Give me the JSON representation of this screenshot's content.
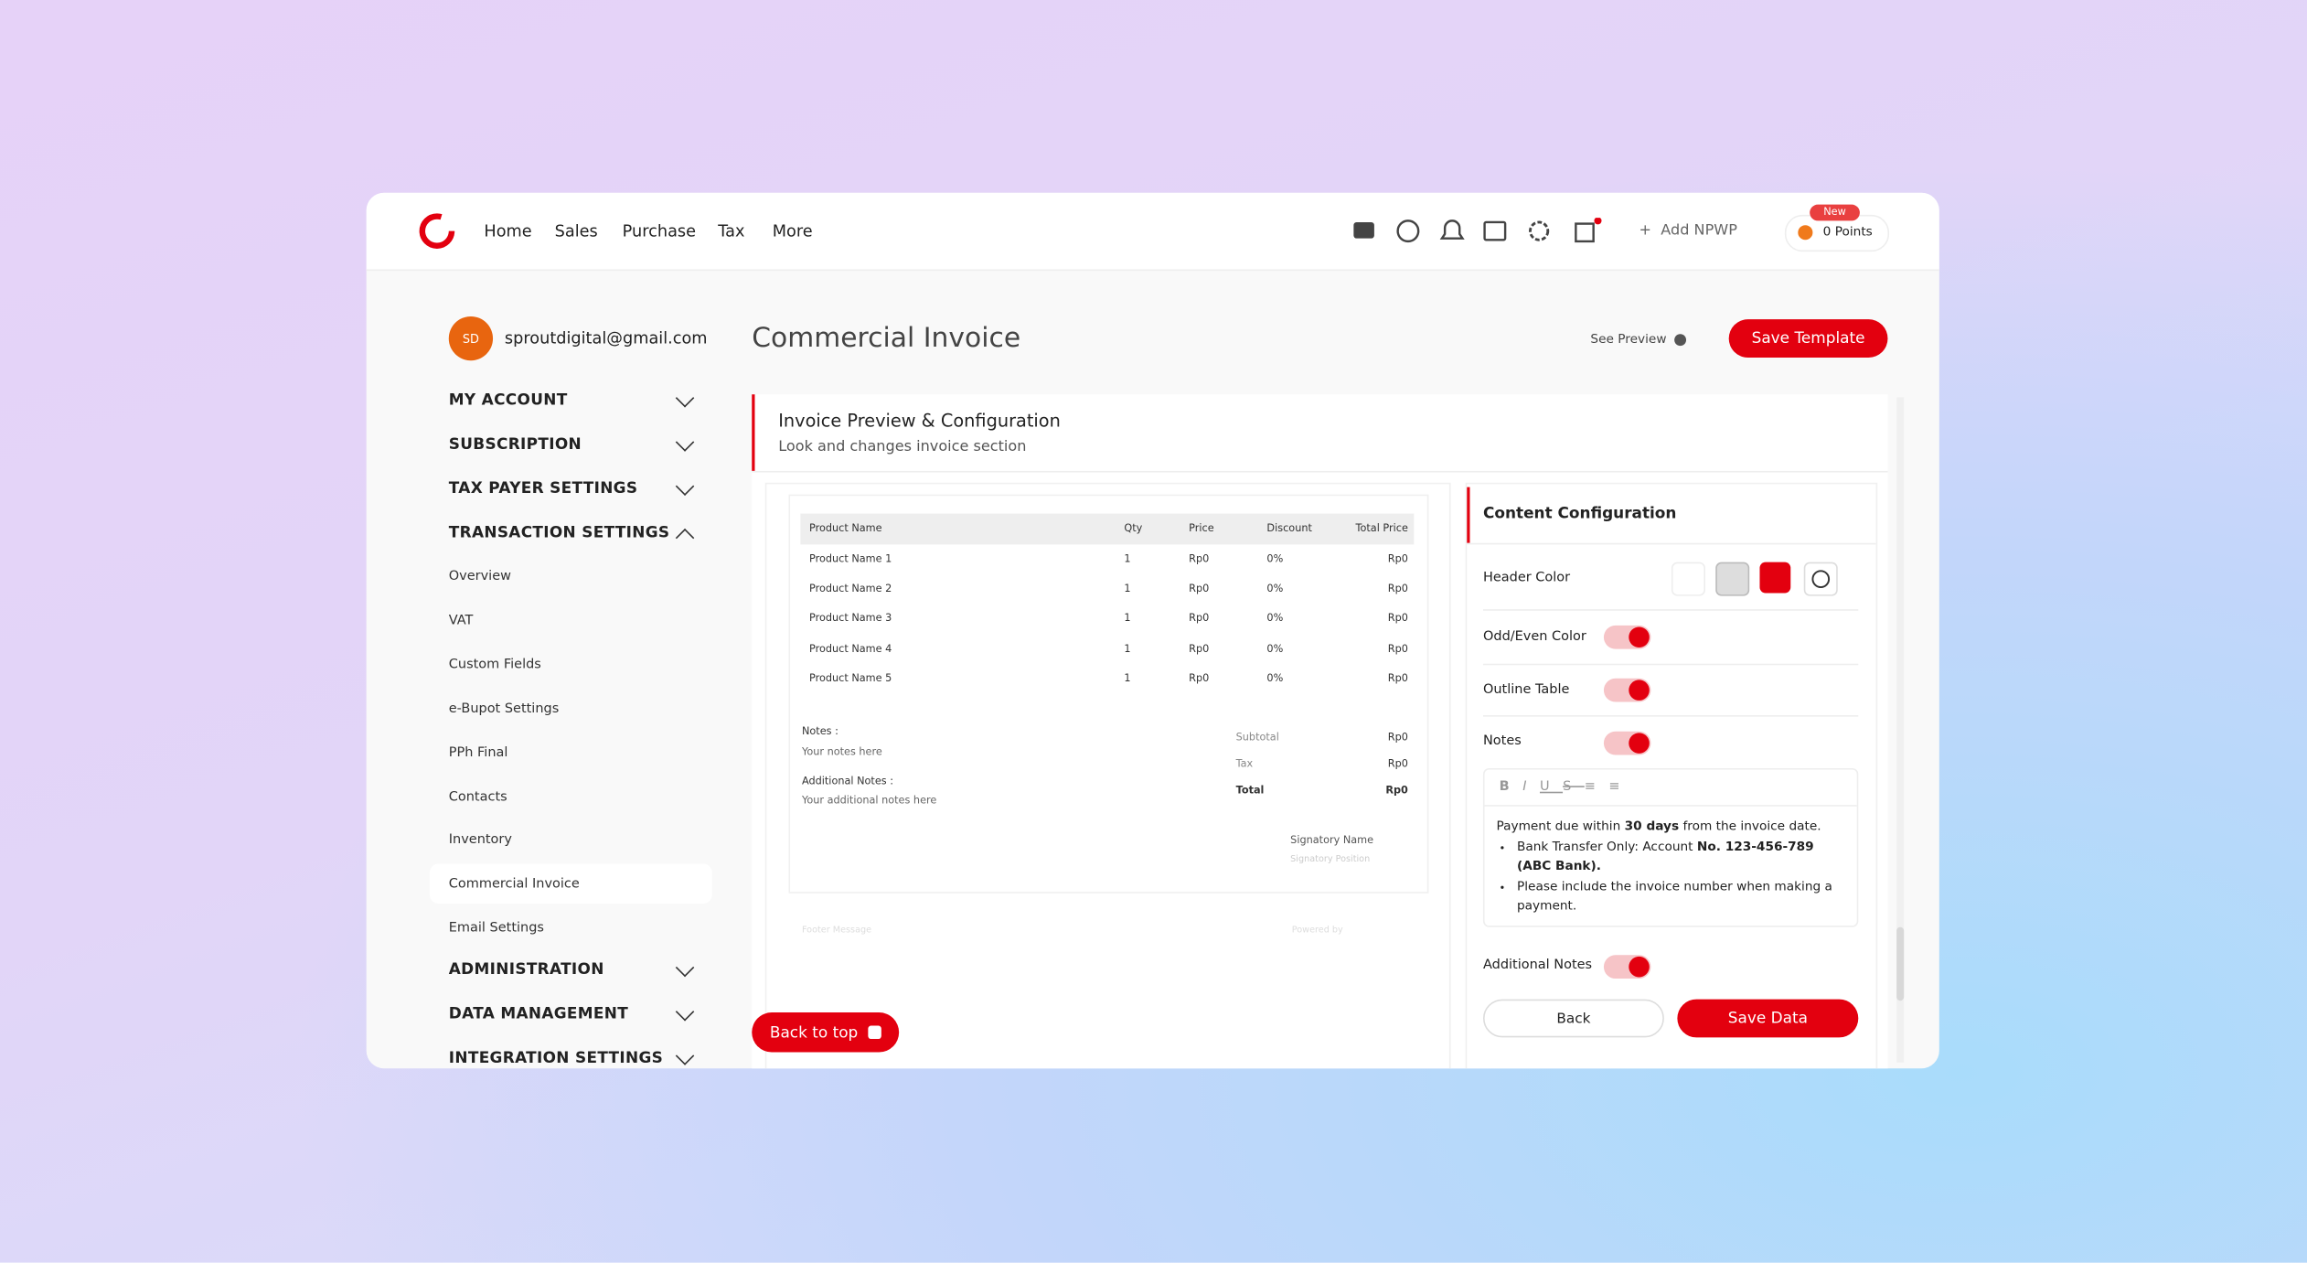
{
  "nav": {
    "links": [
      "Home",
      "Sales",
      "Purchase",
      "Tax",
      "More"
    ],
    "add_npwp": "Add NPWP",
    "badge": "New",
    "points": "0 Points"
  },
  "sidebar": {
    "avatar": "SD",
    "email": "sproutdigital@gmail.com",
    "sections_top": [
      "MY ACCOUNT",
      "SUBSCRIPTION",
      "TAX PAYER SETTINGS",
      "TRANSACTION SETTINGS"
    ],
    "items": [
      "Overview",
      "VAT",
      "Custom Fields",
      "e-Bupot Settings",
      "PPh Final",
      "Contacts",
      "Inventory",
      "Commercial Invoice",
      "Email Settings"
    ],
    "sections_bottom": [
      "ADMINISTRATION",
      "DATA MANAGEMENT",
      "INTEGRATION SETTINGS"
    ]
  },
  "main": {
    "title": "Commercial Invoice",
    "see_preview": "See Preview",
    "save_template": "Save Template",
    "panel_title": "Invoice Preview & Configuration",
    "panel_subtitle": "Look and changes invoice section",
    "back_to_top": "Back to top"
  },
  "invoice": {
    "headers": [
      "Product Name",
      "Qty",
      "Price",
      "Discount",
      "Total Price"
    ],
    "rows": [
      [
        "Product Name 1",
        "1",
        "Rp0",
        "0%",
        "Rp0"
      ],
      [
        "Product Name 2",
        "1",
        "Rp0",
        "0%",
        "Rp0"
      ],
      [
        "Product Name 3",
        "1",
        "Rp0",
        "0%",
        "Rp0"
      ],
      [
        "Product Name 4",
        "1",
        "Rp0",
        "0%",
        "Rp0"
      ],
      [
        "Product Name 5",
        "1",
        "Rp0",
        "0%",
        "Rp0"
      ]
    ],
    "notes_label": "Notes :",
    "notes": "Your notes here",
    "additional_label": "Additional Notes :",
    "additional": "Your additional notes here",
    "summary": [
      [
        "Subtotal",
        "Rp0"
      ],
      [
        "Tax",
        "Rp0"
      ],
      [
        "Total",
        "Rp0"
      ]
    ],
    "signatory_name": "Signatory Name",
    "signatory_position": "Signatory Position",
    "footer": "Footer Message",
    "powered_by": "Powered by"
  },
  "config": {
    "title": "Content Configuration",
    "header_color": "Header Color",
    "odd_even": "Odd/Even Color",
    "outline": "Outline Table",
    "notes": "Notes",
    "editor": {
      "paragraph": [
        "Payment due within ",
        "30 days",
        " from the invoice date."
      ],
      "bullet1": [
        "Bank Transfer Only: Account ",
        "No. 123-456-789 (ABC Bank)."
      ],
      "bullet2": "Please include the invoice number when making a payment."
    },
    "additional_notes": "Additional Notes",
    "back": "Back",
    "save": "Save Data"
  }
}
